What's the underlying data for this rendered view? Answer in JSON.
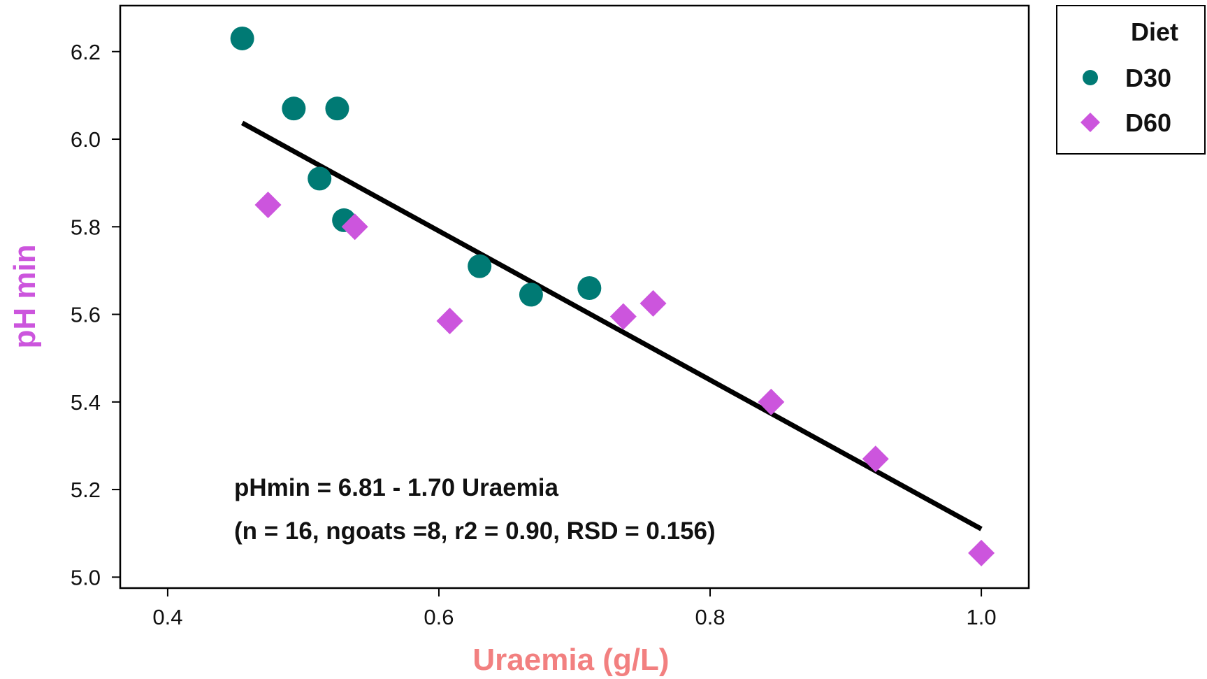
{
  "chart_data": {
    "type": "scatter",
    "xlabel": "Uraemia (g/L)",
    "ylabel": "pH min",
    "xlim": [
      0.365,
      1.035
    ],
    "ylim": [
      4.975,
      6.305
    ],
    "xticks": [
      0.4,
      0.6,
      0.8,
      1.0
    ],
    "xtick_labels": [
      "0.4",
      "0.6",
      "0.8",
      "1.0"
    ],
    "yticks": [
      5.0,
      5.2,
      5.4,
      5.6,
      5.8,
      6.0,
      6.2
    ],
    "ytick_labels": [
      "5.0",
      "5.2",
      "5.4",
      "5.6",
      "5.8",
      "6.0",
      "6.2"
    ],
    "grid": false,
    "legend": {
      "title": "Diet",
      "position": "outside-top-right"
    },
    "series": [
      {
        "name": "D30",
        "marker": "circle",
        "color": "#007A74",
        "points": [
          [
            0.455,
            6.23
          ],
          [
            0.493,
            6.07
          ],
          [
            0.525,
            6.07
          ],
          [
            0.512,
            5.91
          ],
          [
            0.53,
            5.815
          ],
          [
            0.63,
            5.71
          ],
          [
            0.668,
            5.645
          ],
          [
            0.711,
            5.66
          ]
        ]
      },
      {
        "name": "D60",
        "marker": "diamond",
        "color": "#CC55DD",
        "points": [
          [
            0.474,
            5.85
          ],
          [
            0.538,
            5.8
          ],
          [
            0.608,
            5.585
          ],
          [
            0.736,
            5.595
          ],
          [
            0.758,
            5.625
          ],
          [
            0.845,
            5.4
          ],
          [
            0.922,
            5.27
          ],
          [
            1.0,
            5.055
          ]
        ]
      }
    ],
    "regression_line": {
      "x": [
        0.455,
        1.0
      ],
      "y": [
        6.037,
        5.11
      ],
      "color": "#000000"
    },
    "annotations": [
      "pHmin = 6.81 - 1.70 Uraemia",
      "(n = 16, ngoats =8, r2 = 0.90, RSD = 0.156)"
    ],
    "colors": {
      "xlabel": "#F28080",
      "ylabel": "#CC55DD"
    }
  }
}
